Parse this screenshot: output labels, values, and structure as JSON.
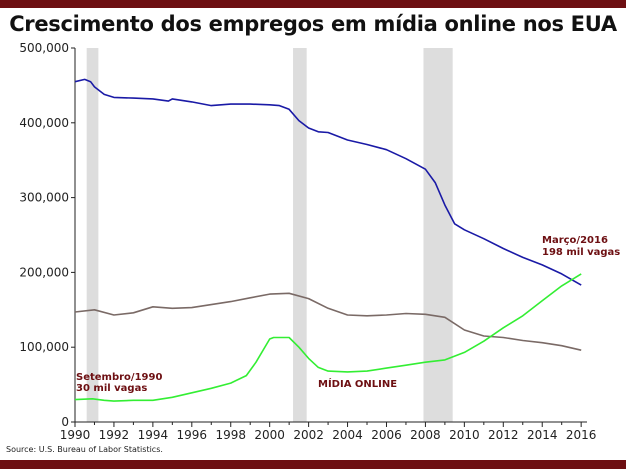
{
  "header": {
    "title": "Crescimento dos empregos em mídia online nos EUA"
  },
  "footer": {
    "source": "Source: U.S. Bureau of Labor Statistics."
  },
  "colors": {
    "frame": "#6d0f12",
    "newspaper_line": "#1a1aa6",
    "online_line": "#33ee33",
    "other_line": "#7a6a66",
    "recession": "#dddddd",
    "annotation": "#6d0f12"
  },
  "chart_data": {
    "type": "line",
    "title": "Crescimento dos empregos em mídia online nos EUA",
    "xlabel": "",
    "ylabel": "",
    "xlim": [
      1990,
      2016.3
    ],
    "ylim": [
      0,
      500000
    ],
    "grid": false,
    "legend": "none",
    "x_ticks": [
      "1990",
      "1992",
      "1994",
      "1996",
      "1998",
      "2000",
      "2002",
      "2004",
      "2006",
      "2008",
      "2010",
      "2012",
      "2014",
      "2016"
    ],
    "y_ticks": [
      "0",
      "100,000",
      "200,000",
      "300,000",
      "400,000",
      "500,000"
    ],
    "recessions": [
      [
        1990.6,
        1991.2
      ],
      [
        2001.2,
        2001.9
      ],
      [
        2007.9,
        2009.4
      ]
    ],
    "series": [
      {
        "color_key": "newspaper_line",
        "x": [
          1990,
          1990.5,
          1990.8,
          1991,
          1991.5,
          1992,
          1993,
          1994,
          1994.8,
          1995,
          1996,
          1997,
          1998,
          1999,
          2000,
          2000.5,
          2001,
          2001.5,
          2002,
          2002.5,
          2003,
          2003.5,
          2004,
          2005,
          2006,
          2007,
          2008,
          2008.5,
          2009,
          2009.5,
          2010,
          2011,
          2012,
          2013,
          2014,
          2015,
          2016
        ],
        "values": [
          455000,
          458000,
          455000,
          448000,
          438000,
          434000,
          433000,
          432000,
          429000,
          432000,
          428000,
          423000,
          425000,
          425000,
          424000,
          423000,
          418000,
          403000,
          393000,
          388000,
          387000,
          382000,
          377000,
          371000,
          364000,
          352000,
          338000,
          320000,
          290000,
          265000,
          257000,
          245000,
          232000,
          220000,
          210000,
          198000,
          183000
        ]
      },
      {
        "color_key": "other_line",
        "x": [
          1990,
          1991,
          1992,
          1993,
          1994,
          1995,
          1996,
          1997,
          1998,
          1999,
          2000,
          2001,
          2002,
          2003,
          2004,
          2005,
          2006,
          2007,
          2008,
          2009,
          2010,
          2011,
          2012,
          2013,
          2014,
          2015,
          2016
        ],
        "values": [
          147000,
          150000,
          143000,
          146000,
          154000,
          152000,
          153000,
          157000,
          161000,
          166000,
          171000,
          172000,
          165000,
          152000,
          143000,
          142000,
          143000,
          145000,
          144000,
          140000,
          123000,
          115000,
          113000,
          109000,
          106000,
          102000,
          96000
        ]
      },
      {
        "color_key": "online_line",
        "x": [
          1990,
          1990.9,
          1991.5,
          1992,
          1993,
          1994,
          1995,
          1996,
          1997,
          1998,
          1998.8,
          1999.3,
          2000,
          2000.2,
          2001,
          2001.5,
          2002,
          2002.5,
          2003,
          2004,
          2005,
          2006,
          2007,
          2008,
          2009,
          2010,
          2011,
          2012,
          2013,
          2014,
          2015,
          2016
        ],
        "values": [
          30000,
          31000,
          29000,
          28000,
          29000,
          29000,
          33000,
          39000,
          45000,
          52000,
          62000,
          80000,
          111000,
          113000,
          113000,
          100000,
          85000,
          73000,
          68000,
          67000,
          68000,
          72000,
          76000,
          80000,
          83000,
          93000,
          108000,
          126000,
          142000,
          162000,
          182000,
          198000
        ]
      }
    ],
    "annotations": [
      {
        "line1": "Setembro/1990",
        "line2": "30 mil vagas"
      },
      {
        "line1": "MÍDIA ONLINE"
      },
      {
        "line1": "Março/2016",
        "line2": "198 mil vagas"
      }
    ]
  }
}
